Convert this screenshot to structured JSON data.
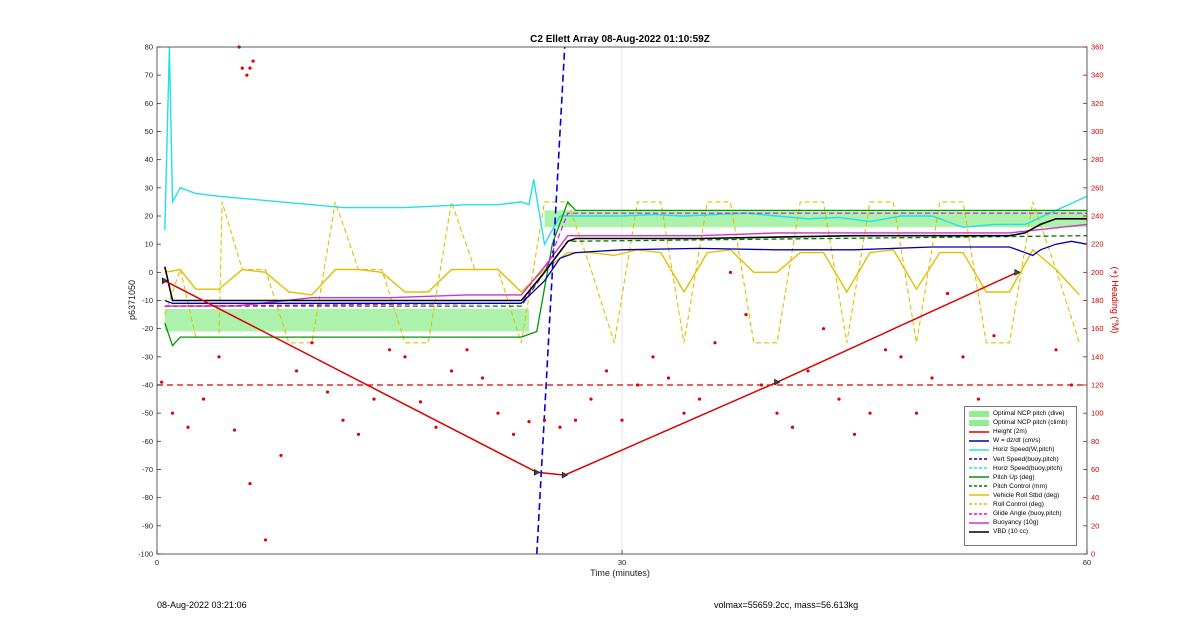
{
  "chart_data": {
    "type": "line",
    "title": "C2 Ellett Array 08-Aug-2022 01:10:59Z",
    "xlabel": "Time (minutes)",
    "ylabel": "p6371050",
    "y2label": "(+) Heading (°M)",
    "xlim": [
      0,
      60
    ],
    "ylim": [
      -100,
      80
    ],
    "y2lim": [
      0,
      360
    ],
    "xticks": [
      "0",
      "30",
      "60"
    ],
    "yticks": [
      "80",
      "70",
      "60",
      "50",
      "40",
      "30",
      "20",
      "10",
      "0",
      "-10",
      "-20",
      "-30",
      "-40",
      "-50",
      "-60",
      "-70",
      "-80",
      "-90",
      "-100"
    ],
    "y2ticks": [
      "360",
      "340",
      "320",
      "300",
      "280",
      "260",
      "240",
      "220",
      "200",
      "180",
      "160",
      "140",
      "120",
      "100",
      "80",
      "60",
      "40",
      "20",
      "0"
    ],
    "grid": "x-major",
    "legend_position": "bottom-right",
    "colors": {
      "ncp": "#90ee90",
      "height": "#dd0000",
      "w": "#0000aa",
      "horiz": "#22e0e8",
      "vert": "#0000dd",
      "pitch_up": "#009900",
      "pitch_ctrl": "#007700",
      "roll": "#e0c000",
      "glide": "#ee00ee",
      "buoy": "#cc33cc",
      "vbd": "#000000",
      "heading": "#dd0000",
      "right_axis": "#cc0000"
    },
    "legend": [
      {
        "key": "ncp_dive",
        "label": "Optimal NCP pitch (dive)"
      },
      {
        "key": "ncp_climb",
        "label": "Optimal NCP pitch (climb)"
      },
      {
        "key": "height",
        "label": "Height (2m)"
      },
      {
        "key": "w",
        "label": "W = dz/dt (cm/s)"
      },
      {
        "key": "horiz",
        "label": "Horiz Speed(W,pitch)"
      },
      {
        "key": "vert",
        "label": "Vert Speed(buoy,pitch)"
      },
      {
        "key": "horiz_buoy",
        "label": "Horiz Speed(buoy,pitch)"
      },
      {
        "key": "pitch_up",
        "label": "Pitch Up (deg)"
      },
      {
        "key": "pitch_ctrl",
        "label": "Pitch Control (mm)"
      },
      {
        "key": "roll",
        "label": "Vehicle Roll Stbd (deg)"
      },
      {
        "key": "roll_ctrl",
        "label": "Roll Control (deg)"
      },
      {
        "key": "glide",
        "label": "Glide Angle (buoy,pitch)"
      },
      {
        "key": "buoy",
        "label": "Buoyancy (10g)"
      },
      {
        "key": "vbd",
        "label": "VBD (10 cc)"
      }
    ],
    "ncp_dive": {
      "x": [
        0.5,
        24
      ],
      "y": [
        -21,
        -13
      ]
    },
    "ncp_climb": {
      "x": [
        25,
        60
      ],
      "y": [
        16,
        22
      ]
    },
    "height": {
      "x": [
        0.5,
        24.5,
        26.3,
        40,
        55.5
      ],
      "y": [
        -3,
        -71,
        -72,
        -39,
        0
      ]
    },
    "w": {
      "x": [
        0.5,
        1,
        5,
        10,
        15,
        20,
        23.5,
        25,
        26,
        27,
        30,
        35,
        40,
        45,
        50,
        55,
        56.5,
        57,
        58,
        59,
        60
      ],
      "y": [
        -10,
        -11,
        -11,
        -11,
        -11,
        -11,
        -11,
        -3,
        5,
        7,
        8,
        8.5,
        8,
        8,
        9,
        9,
        6,
        8,
        10,
        11,
        10
      ]
    },
    "horiz": {
      "x": [
        0.5,
        0.8,
        1,
        1.5,
        2.5,
        4,
        6,
        8,
        10,
        12,
        14,
        16,
        18,
        20,
        22,
        23.5,
        24,
        24.3,
        25,
        26,
        27,
        30,
        32,
        34,
        36,
        38,
        40,
        42,
        44,
        46,
        48,
        50,
        52,
        54,
        56,
        58,
        60
      ],
      "y": [
        15,
        80,
        25,
        30,
        28,
        27,
        26,
        25,
        24,
        23,
        23,
        23,
        23.5,
        24,
        24,
        25,
        24,
        33,
        10,
        20,
        20,
        20,
        20.5,
        20,
        20.5,
        21,
        20,
        19,
        19.5,
        18,
        20,
        20,
        16,
        17,
        17,
        22,
        27
      ]
    },
    "vert": {
      "x": [
        24.5,
        26.3
      ],
      "y": [
        -100,
        80
      ]
    },
    "pitch_up": {
      "x": [
        0.5,
        1,
        1.5,
        2,
        23.5,
        24.5,
        25.5,
        26.5,
        27,
        28,
        60
      ],
      "y": [
        -18,
        -26,
        -23,
        -23,
        -23,
        -21,
        10,
        25,
        22,
        22,
        22
      ]
    },
    "pitch_ctrl": {
      "x": [
        0.5,
        23.5,
        25,
        26.5,
        60
      ],
      "y": [
        -12,
        -12,
        0,
        11,
        13
      ]
    },
    "roll": {
      "x": [
        0.5,
        1.5,
        2.5,
        4,
        5.5,
        7,
        8.5,
        10,
        11.5,
        13,
        14.5,
        16,
        17.5,
        19,
        20.5,
        22,
        23.5,
        25,
        26.5,
        28,
        29.5,
        31,
        32.5,
        34,
        35.5,
        37,
        38.5,
        40,
        41.5,
        43,
        44.5,
        46,
        47.5,
        49,
        50.5,
        52,
        53.5,
        55,
        56.5,
        58,
        59.5
      ],
      "y": [
        0,
        1,
        -6,
        -6,
        1,
        0,
        -7,
        -8,
        1,
        1,
        0,
        -7,
        -7,
        1,
        1,
        1,
        -7,
        1,
        7,
        7,
        6,
        8,
        7,
        -7,
        7,
        8,
        0,
        0,
        7,
        7,
        -7,
        7,
        8,
        -6,
        7,
        7,
        -7,
        -7,
        8,
        1,
        -8
      ]
    },
    "roll_ctrl": {
      "x": [
        0.5,
        1.5,
        2.5,
        4,
        4.2,
        5.5,
        7,
        8.5,
        10,
        11.5,
        13,
        14.5,
        16,
        17.5,
        19,
        20.5,
        22,
        23.5,
        25,
        26.5,
        28,
        29.5,
        31,
        32.5,
        34,
        35.5,
        37,
        38.5,
        40,
        41.5,
        43,
        44.5,
        46,
        47.5,
        49,
        50.5,
        52,
        53.5,
        55,
        56.5,
        58,
        59.5
      ],
      "y": [
        -15,
        1,
        -23,
        -23,
        25,
        1,
        1,
        -25,
        -25,
        25,
        1,
        1,
        -25,
        -25,
        25,
        1,
        1,
        -25,
        25,
        25,
        1,
        -25,
        25,
        25,
        -25,
        25,
        25,
        -25,
        -25,
        25,
        25,
        -25,
        25,
        25,
        -25,
        25,
        25,
        -25,
        -25,
        25,
        1,
        -25
      ]
    },
    "glide": {
      "x": [
        0.5,
        23.5,
        25,
        26.5,
        60
      ],
      "y": [
        -12,
        -11,
        0,
        21,
        21
      ]
    },
    "buoy": {
      "x": [
        0.5,
        5,
        10,
        15,
        20,
        23.5,
        25,
        26.5,
        27,
        30,
        35,
        40,
        45,
        50,
        55,
        60
      ],
      "y": [
        -12,
        -12,
        -9,
        -9,
        -8,
        -8,
        2,
        13,
        13,
        13,
        13,
        14,
        14,
        14,
        14,
        17
      ]
    },
    "vbd": {
      "x": [
        0.5,
        1,
        5,
        10,
        15,
        20,
        23.5,
        25,
        26.5,
        27,
        30,
        35,
        40,
        45,
        50,
        55,
        56,
        57,
        58,
        59,
        60
      ],
      "y": [
        2,
        -10,
        -10,
        -10,
        -10,
        -10,
        -10,
        0,
        11,
        12,
        12,
        12,
        12.5,
        13,
        13,
        13,
        14,
        17,
        19,
        19,
        19
      ]
    },
    "threshold_heading": 120,
    "heading": {
      "x": [
        0.3,
        1,
        2,
        3,
        4,
        5,
        6,
        7,
        8,
        9,
        10,
        11,
        12,
        13,
        14,
        15,
        16,
        17,
        18,
        19,
        20,
        21,
        22,
        23,
        24,
        25,
        26,
        27,
        28,
        29,
        30,
        31,
        32,
        33,
        34,
        35,
        36,
        37,
        38,
        39,
        40,
        41,
        42,
        43,
        44,
        45,
        46,
        47,
        48,
        49,
        50,
        51,
        52,
        53,
        54,
        55,
        56,
        57,
        58,
        59
      ],
      "y": [
        122,
        100,
        90,
        110,
        140,
        88,
        50,
        10,
        70,
        130,
        150,
        115,
        95,
        85,
        110,
        145,
        140,
        108,
        90,
        130,
        145,
        125,
        100,
        85,
        94,
        95,
        90,
        95,
        110,
        130,
        95,
        120,
        140,
        125,
        100,
        110,
        150,
        200,
        170,
        120,
        100,
        90,
        130,
        160,
        110,
        85,
        100,
        145,
        140,
        100,
        125,
        185,
        140,
        110,
        155,
        80,
        70,
        90,
        145,
        120
      ]
    },
    "heading_outliers": {
      "x": [
        5.3,
        5.5,
        5.8,
        6.0,
        6.2
      ],
      "y": [
        360,
        345,
        340,
        345,
        350
      ]
    }
  },
  "footer": {
    "left": "08-Aug-2022 03:21:06",
    "right": "volmax=55659.2cc, mass=56.613kg"
  }
}
